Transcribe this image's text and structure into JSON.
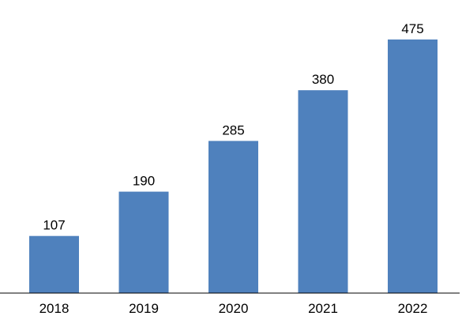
{
  "chart_data": {
    "type": "bar",
    "categories": [
      "2018",
      "2019",
      "2020",
      "2021",
      "2022"
    ],
    "values": [
      107,
      190,
      285,
      380,
      475
    ],
    "data_labels": [
      "107",
      "190",
      "285",
      "380",
      "475"
    ],
    "title": "",
    "xlabel": "",
    "ylabel": "",
    "ylim": [
      0,
      500
    ],
    "grid": false,
    "legend": "none",
    "bar_color": "#4F81BD",
    "axis_color": "#000000"
  }
}
